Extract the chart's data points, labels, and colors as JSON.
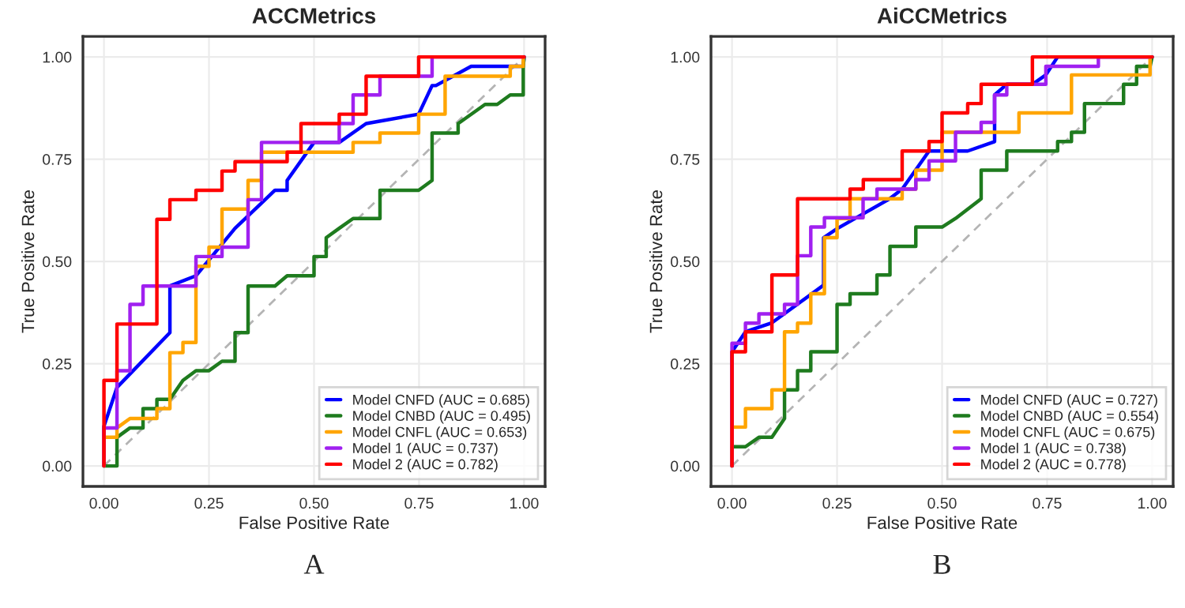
{
  "chart_data": [
    {
      "type": "line",
      "title": "ACCMetrics",
      "xlabel": "False Positive Rate",
      "ylabel": "True Positive Rate",
      "annotations": [
        "A"
      ],
      "xlim": [
        -0.05,
        1.05
      ],
      "ylim": [
        -0.05,
        1.05
      ],
      "xticks": [
        {
          "value": 0,
          "label": "0.00"
        },
        {
          "value": 0.25,
          "label": "0.25"
        },
        {
          "value": 0.5,
          "label": "0.50"
        },
        {
          "value": 0.75,
          "label": "0.75"
        },
        {
          "value": 1,
          "label": "1.00"
        }
      ],
      "yticks": [
        {
          "value": 0,
          "label": "0.00"
        },
        {
          "value": 0.25,
          "label": "0.25"
        },
        {
          "value": 0.5,
          "label": "0.50"
        },
        {
          "value": 0.75,
          "label": "0.75"
        },
        {
          "value": 1,
          "label": "1.00"
        }
      ],
      "grid": true,
      "legend": "bottom right",
      "series": [
        {
          "color": "#b4b4b4",
          "line_style": "dashed",
          "x": [
            0,
            1
          ],
          "values": [
            0,
            1
          ]
        },
        {
          "name": "Model CNFD (AUC = 0.685)",
          "color": "#0000ff",
          "x": [
            0,
            0,
            0.031,
            0.157,
            0.157,
            0.219,
            0.312,
            0.407,
            0.436,
            0.436,
            0.5,
            0.56,
            0.624,
            0.749,
            0.781,
            0.79,
            0.874,
            0.998,
            1
          ],
          "values": [
            0,
            0.097,
            0.192,
            0.326,
            0.44,
            0.465,
            0.581,
            0.674,
            0.674,
            0.698,
            0.791,
            0.791,
            0.837,
            0.86,
            0.93,
            0.93,
            0.977,
            0.977,
            1
          ]
        },
        {
          "name": "Model CNBD (AUC = 0.495)",
          "color": "#1e7b1e",
          "x": [
            0,
            0.031,
            0.031,
            0.062,
            0.093,
            0.093,
            0.126,
            0.126,
            0.157,
            0.188,
            0.219,
            0.25,
            0.281,
            0.312,
            0.312,
            0.343,
            0.343,
            0.407,
            0.436,
            0.5,
            0.5,
            0.529,
            0.529,
            0.56,
            0.593,
            0.657,
            0.657,
            0.749,
            0.781,
            0.781,
            0.843,
            0.843,
            0.907,
            0.936,
            0.967,
            0.998,
            0.998,
            1
          ],
          "values": [
            0,
            0,
            0.07,
            0.093,
            0.093,
            0.14,
            0.14,
            0.163,
            0.163,
            0.209,
            0.233,
            0.233,
            0.256,
            0.256,
            0.326,
            0.326,
            0.44,
            0.44,
            0.465,
            0.465,
            0.512,
            0.512,
            0.558,
            0.581,
            0.605,
            0.605,
            0.674,
            0.674,
            0.698,
            0.814,
            0.814,
            0.837,
            0.884,
            0.884,
            0.907,
            0.907,
            0.977,
            1
          ]
        },
        {
          "name": "Model CNFL (AUC = 0.653)",
          "color": "#ffa500",
          "x": [
            0,
            0,
            0.031,
            0.031,
            0.062,
            0.126,
            0.126,
            0.157,
            0.157,
            0.188,
            0.188,
            0.219,
            0.219,
            0.25,
            0.25,
            0.281,
            0.281,
            0.343,
            0.343,
            0.375,
            0.375,
            0.593,
            0.593,
            0.657,
            0.657,
            0.749,
            0.749,
            0.812,
            0.812,
            0.967,
            0.967,
            0.998,
            0.998
          ],
          "values": [
            0,
            0.07,
            0.07,
            0.093,
            0.116,
            0.116,
            0.14,
            0.14,
            0.277,
            0.277,
            0.302,
            0.302,
            0.488,
            0.488,
            0.535,
            0.535,
            0.628,
            0.628,
            0.698,
            0.698,
            0.767,
            0.767,
            0.791,
            0.791,
            0.814,
            0.814,
            0.86,
            0.86,
            0.953,
            0.953,
            0.977,
            0.977,
            1
          ]
        },
        {
          "name": "Model 1 (AUC = 0.737)",
          "color": "#a020f0",
          "x": [
            0,
            0,
            0.031,
            0.031,
            0.062,
            0.062,
            0.093,
            0.093,
            0.219,
            0.219,
            0.281,
            0.281,
            0.343,
            0.343,
            0.375,
            0.375,
            0.56,
            0.56,
            0.593,
            0.593,
            0.657,
            0.657,
            0.781,
            0.781,
            1
          ],
          "values": [
            0,
            0.093,
            0.093,
            0.233,
            0.233,
            0.395,
            0.395,
            0.44,
            0.44,
            0.512,
            0.512,
            0.535,
            0.535,
            0.651,
            0.651,
            0.791,
            0.791,
            0.837,
            0.837,
            0.907,
            0.907,
            0.953,
            0.953,
            1,
            1
          ]
        },
        {
          "name": "Model 2 (AUC = 0.782)",
          "color": "#ff0000",
          "x": [
            0,
            0,
            0.031,
            0.031,
            0.126,
            0.126,
            0.157,
            0.157,
            0.219,
            0.219,
            0.281,
            0.281,
            0.312,
            0.312,
            0.436,
            0.436,
            0.469,
            0.469,
            0.56,
            0.56,
            0.624,
            0.624,
            0.749,
            0.749,
            1
          ],
          "values": [
            0,
            0.209,
            0.209,
            0.347,
            0.347,
            0.603,
            0.603,
            0.651,
            0.651,
            0.674,
            0.674,
            0.721,
            0.721,
            0.744,
            0.744,
            0.767,
            0.767,
            0.837,
            0.837,
            0.86,
            0.86,
            0.953,
            0.953,
            1,
            1
          ]
        }
      ]
    },
    {
      "type": "line",
      "title": "AiCCMetrics",
      "xlabel": "False Positive Rate",
      "ylabel": "True Positive Rate",
      "annotations": [
        "B"
      ],
      "xlim": [
        -0.05,
        1.05
      ],
      "ylim": [
        -0.05,
        1.05
      ],
      "xticks": [
        {
          "value": 0,
          "label": "0.00"
        },
        {
          "value": 0.25,
          "label": "0.25"
        },
        {
          "value": 0.5,
          "label": "0.50"
        },
        {
          "value": 0.75,
          "label": "0.75"
        },
        {
          "value": 1,
          "label": "1.00"
        }
      ],
      "yticks": [
        {
          "value": 0,
          "label": "0.00"
        },
        {
          "value": 0.25,
          "label": "0.25"
        },
        {
          "value": 0.5,
          "label": "0.50"
        },
        {
          "value": 0.75,
          "label": "0.75"
        },
        {
          "value": 1,
          "label": "1.00"
        }
      ],
      "grid": true,
      "legend": "bottom right",
      "series": [
        {
          "color": "#b4b4b4",
          "line_style": "dashed",
          "x": [
            0,
            1
          ],
          "values": [
            0,
            1
          ]
        },
        {
          "name": "Model CNFD (AUC = 0.727)",
          "color": "#0000ff",
          "x": [
            0,
            0,
            0.032,
            0.095,
            0.218,
            0.218,
            0.25,
            0.375,
            0.405,
            0.469,
            0.561,
            0.625,
            0.625,
            0.654,
            0.715,
            0.747,
            0.775,
            1
          ],
          "values": [
            0,
            0.279,
            0.328,
            0.35,
            0.442,
            0.558,
            0.58,
            0.653,
            0.677,
            0.77,
            0.77,
            0.793,
            0.907,
            0.933,
            0.933,
            0.956,
            1,
            1
          ]
        },
        {
          "name": "Model CNBD (AUC = 0.554)",
          "color": "#1e7b1e",
          "x": [
            0,
            0,
            0.032,
            0.064,
            0.095,
            0.125,
            0.125,
            0.156,
            0.156,
            0.1875,
            0.1875,
            0.25,
            0.25,
            0.281,
            0.281,
            0.345,
            0.345,
            0.376,
            0.376,
            0.4375,
            0.4375,
            0.5,
            0.532,
            0.593,
            0.593,
            0.654,
            0.654,
            0.775,
            0.775,
            0.808,
            0.808,
            0.839,
            0.839,
            0.932,
            0.932,
            0.963,
            0.963,
            0.995,
            1
          ],
          "values": [
            0,
            0.047,
            0.047,
            0.07,
            0.07,
            0.116,
            0.186,
            0.186,
            0.233,
            0.233,
            0.279,
            0.279,
            0.395,
            0.395,
            0.421,
            0.421,
            0.467,
            0.467,
            0.537,
            0.537,
            0.584,
            0.584,
            0.605,
            0.653,
            0.723,
            0.723,
            0.77,
            0.77,
            0.793,
            0.793,
            0.816,
            0.816,
            0.886,
            0.886,
            0.933,
            0.933,
            0.977,
            0.977,
            1
          ]
        },
        {
          "name": "Model CNFL (AUC = 0.675)",
          "color": "#ffa500",
          "x": [
            0,
            0,
            0.032,
            0.032,
            0.095,
            0.095,
            0.125,
            0.125,
            0.156,
            0.156,
            0.1875,
            0.1875,
            0.22,
            0.22,
            0.25,
            0.25,
            0.281,
            0.281,
            0.405,
            0.405,
            0.4375,
            0.4375,
            0.5,
            0.5,
            0.683,
            0.683,
            0.808,
            0.808,
            0.995,
            0.995
          ],
          "values": [
            0,
            0.095,
            0.095,
            0.14,
            0.14,
            0.186,
            0.186,
            0.328,
            0.328,
            0.349,
            0.349,
            0.421,
            0.421,
            0.558,
            0.558,
            0.605,
            0.605,
            0.653,
            0.653,
            0.677,
            0.677,
            0.723,
            0.723,
            0.816,
            0.816,
            0.863,
            0.863,
            0.956,
            0.956,
            1
          ]
        },
        {
          "name": "Model 1 (AUC = 0.738)",
          "color": "#a020f0",
          "x": [
            0,
            0,
            0.032,
            0.032,
            0.064,
            0.064,
            0.125,
            0.125,
            0.156,
            0.156,
            0.1875,
            0.1875,
            0.22,
            0.22,
            0.312,
            0.312,
            0.345,
            0.345,
            0.4375,
            0.4375,
            0.469,
            0.469,
            0.532,
            0.532,
            0.593,
            0.593,
            0.625,
            0.625,
            0.654,
            0.654,
            0.747,
            0.747,
            0.872,
            0.872,
            1
          ],
          "values": [
            0,
            0.3,
            0.3,
            0.349,
            0.349,
            0.372,
            0.372,
            0.395,
            0.395,
            0.514,
            0.514,
            0.584,
            0.584,
            0.607,
            0.607,
            0.653,
            0.653,
            0.677,
            0.677,
            0.7,
            0.7,
            0.746,
            0.746,
            0.816,
            0.816,
            0.84,
            0.84,
            0.907,
            0.907,
            0.933,
            0.933,
            0.977,
            0.977,
            1,
            1
          ]
        },
        {
          "name": "Model 2 (AUC = 0.778)",
          "color": "#ff0000",
          "x": [
            0,
            0,
            0.032,
            0.032,
            0.095,
            0.095,
            0.156,
            0.156,
            0.281,
            0.281,
            0.3125,
            0.3125,
            0.405,
            0.405,
            0.469,
            0.469,
            0.5,
            0.5,
            0.561,
            0.561,
            0.593,
            0.593,
            0.715,
            0.715,
            1
          ],
          "values": [
            0,
            0.279,
            0.279,
            0.328,
            0.328,
            0.467,
            0.467,
            0.653,
            0.653,
            0.677,
            0.677,
            0.7,
            0.7,
            0.77,
            0.77,
            0.793,
            0.793,
            0.863,
            0.863,
            0.886,
            0.886,
            0.933,
            0.933,
            1,
            1
          ]
        }
      ]
    }
  ]
}
